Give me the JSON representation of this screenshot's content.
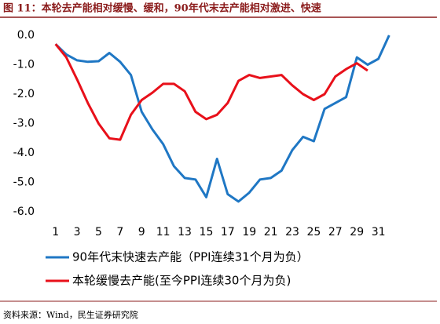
{
  "chart_data": {
    "type": "line",
    "title": "图 11：本轮去产能相对缓慢、缓和，90年代末去产能相对激进、快速",
    "source": "资料来源：Wind，民生证券研究院",
    "x": [
      1,
      2,
      3,
      4,
      5,
      6,
      7,
      8,
      9,
      10,
      11,
      12,
      13,
      14,
      15,
      16,
      17,
      18,
      19,
      20,
      21,
      22,
      23,
      24,
      25,
      26,
      27,
      28,
      29,
      30,
      31,
      32
    ],
    "xlim": [
      0,
      33
    ],
    "xticks": [
      1,
      3,
      5,
      7,
      9,
      11,
      13,
      15,
      17,
      19,
      21,
      23,
      25,
      27,
      29,
      31
    ],
    "ylim": [
      -6,
      0
    ],
    "yticks": [
      {
        "value": 0,
        "label": "0.0"
      },
      {
        "value": -1,
        "label": "-1.0"
      },
      {
        "value": -2,
        "label": "-2.0"
      },
      {
        "value": -3,
        "label": "-3.0"
      },
      {
        "value": -4,
        "label": "-4.0"
      },
      {
        "value": -5,
        "label": "-5.0"
      },
      {
        "value": -6,
        "label": "-6.0"
      }
    ],
    "grid": false,
    "series": [
      {
        "name": "90年代末快速去产能（PPI连续31个月为负）",
        "color": "#1f77c4",
        "values": [
          -0.3,
          -0.65,
          -0.85,
          -0.9,
          -0.88,
          -0.6,
          -0.9,
          -1.35,
          -2.6,
          -3.2,
          -3.7,
          -4.45,
          -4.85,
          -4.9,
          -5.5,
          -4.2,
          -5.4,
          -5.65,
          -5.35,
          -4.9,
          -4.85,
          -4.6,
          -3.9,
          -3.45,
          -3.6,
          -2.5,
          -2.3,
          -2.1,
          -0.75,
          -1.0,
          -0.8,
          0.0
        ]
      },
      {
        "name": "本轮缓慢去产能(至今PPI连续30个月为负)",
        "color": "#e8101a",
        "values": [
          -0.3,
          -0.75,
          -1.5,
          -2.3,
          -3.0,
          -3.5,
          -3.55,
          -2.7,
          -2.2,
          -1.95,
          -1.65,
          -1.65,
          -1.9,
          -2.6,
          -2.85,
          -2.7,
          -2.3,
          -1.55,
          -1.35,
          -1.45,
          -1.4,
          -1.35,
          -1.7,
          -2.0,
          -2.2,
          -2.0,
          -1.4,
          -1.15,
          -0.95,
          -1.2,
          null,
          null
        ]
      }
    ]
  }
}
